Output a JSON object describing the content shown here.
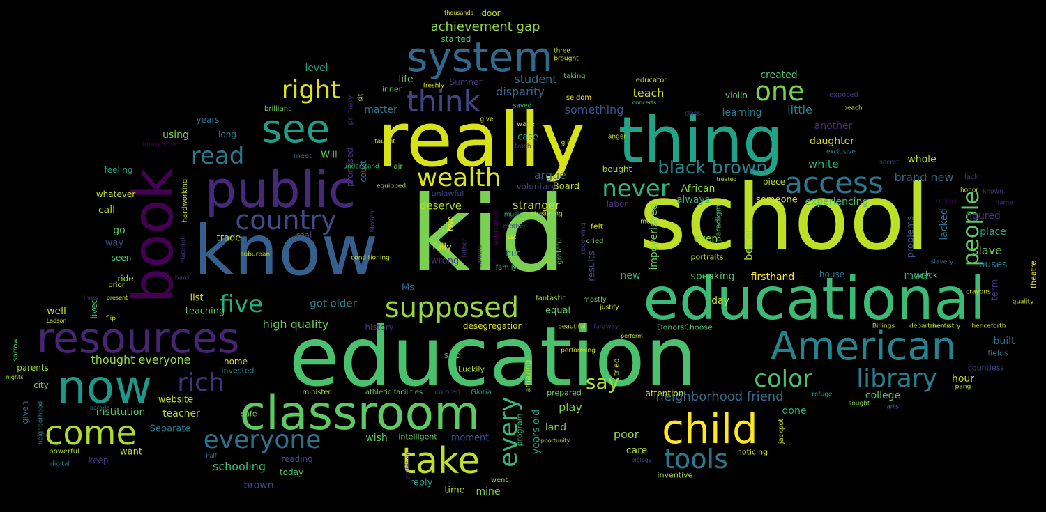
{
  "palette": {
    "background": "#000000",
    "yellow": "#d8e219",
    "lime": "#a0da39",
    "green": "#4ac16d",
    "teal_green": "#1fa187",
    "teal": "#277f8e",
    "blue": "#365c8d",
    "indigo": "#46327e",
    "purple": "#440154"
  },
  "words": [
    "kid",
    "school",
    "education",
    "really",
    "thing",
    "educational",
    "know",
    "public",
    "book",
    "classroom",
    "system",
    "resources",
    "now",
    "American",
    "child",
    "take",
    "come",
    "see",
    "supposed",
    "access",
    "country",
    "think",
    "right",
    "one",
    "everyone",
    "library",
    "tools",
    "rich",
    "wealth",
    "color",
    "people",
    "never",
    "black brown",
    "five",
    "every",
    "say",
    "read",
    "achievement gap",
    "neighborhood friend",
    "high quality",
    "slave",
    "schooling",
    "disparity",
    "got older",
    "thought everyone",
    "something",
    "student",
    "argue",
    "deserve",
    "stranger",
    "Board",
    "voluntary",
    "African",
    "always",
    "brand new",
    "whole",
    "experiencing",
    "created",
    "teach",
    "learning",
    "little",
    "another",
    "daughter",
    "white",
    "problems",
    "figured",
    "place",
    "buses",
    "theatre",
    "lacked",
    "firsthand",
    "house",
    "wreck",
    "much",
    "term",
    "hour",
    "college",
    "built",
    "fields",
    "countless",
    "impoverished",
    "speaking",
    "better",
    "even",
    "results",
    "new",
    "poor",
    "care",
    "biology",
    "noticing",
    "inventive",
    "done",
    "prepared",
    "play",
    "land",
    "years old",
    "amazing",
    "program",
    "moment",
    "wish",
    "intelligent",
    "athletic facilities",
    "colored",
    "Gloria",
    "minister",
    "safe",
    "invested",
    "home",
    "website",
    "institution",
    "teacher",
    "Separate",
    "given",
    "city",
    "parents",
    "well",
    "list",
    "teaching",
    "lived",
    "ride",
    "seen",
    "prior",
    "way",
    "go",
    "call",
    "whatever",
    "feeling",
    "using",
    "innovative",
    "years",
    "long",
    "level",
    "brilliant",
    "matter",
    "life",
    "promised",
    "court",
    "equipped",
    "unlawful",
    "two",
    "educated",
    "mother",
    "music",
    "fully",
    "wrong",
    "real",
    "trade",
    "suburban",
    "family",
    "bus",
    "history",
    "desegregation",
    "Ms",
    "said",
    "Luckily",
    "reply",
    "time",
    "mine",
    "went",
    "today",
    "reading",
    "brown",
    "keep",
    "want",
    "powerful",
    "digital",
    "half",
    "door",
    "thousands",
    "started",
    "Sumner",
    "three",
    "brought",
    "taking",
    "seldom",
    "educator",
    "violin",
    "concerts",
    "class",
    "treated",
    "exposed",
    "peach",
    "exclusive",
    "secret",
    "lack",
    "known",
    "name",
    "quality",
    "tried",
    "mostly",
    "faraway",
    "DonorsChoose",
    "perform",
    "performing",
    "beautiful",
    "fantastic",
    "justify",
    "equal",
    "day",
    "Billings",
    "departments",
    "henceforth",
    "someone",
    "piece",
    "O'clock",
    "refuge",
    "sought",
    "arts",
    "bought",
    "labor",
    "morning",
    "felt",
    "anger",
    "gift",
    "wake",
    "case",
    "trash",
    "saved",
    "give",
    "taught",
    "air",
    "meet",
    "Will",
    "understand",
    "hardworking",
    "material",
    "lives",
    "nights",
    "neighborhood",
    "parade",
    "flip",
    "Ladson",
    "sorrow",
    "present",
    "hard",
    "sit",
    "primary",
    "inner",
    "freshly",
    "Let",
    "grateful",
    "receiving",
    "cried",
    "crayons",
    "slavery",
    "portraits",
    "chemistry",
    "conditioning",
    "Moses",
    "ambition",
    "father",
    "careers",
    "streaming",
    "opportunity",
    "attention",
    "jackpot",
    "honor",
    "pang",
    "paradigm",
    "visual"
  ]
}
